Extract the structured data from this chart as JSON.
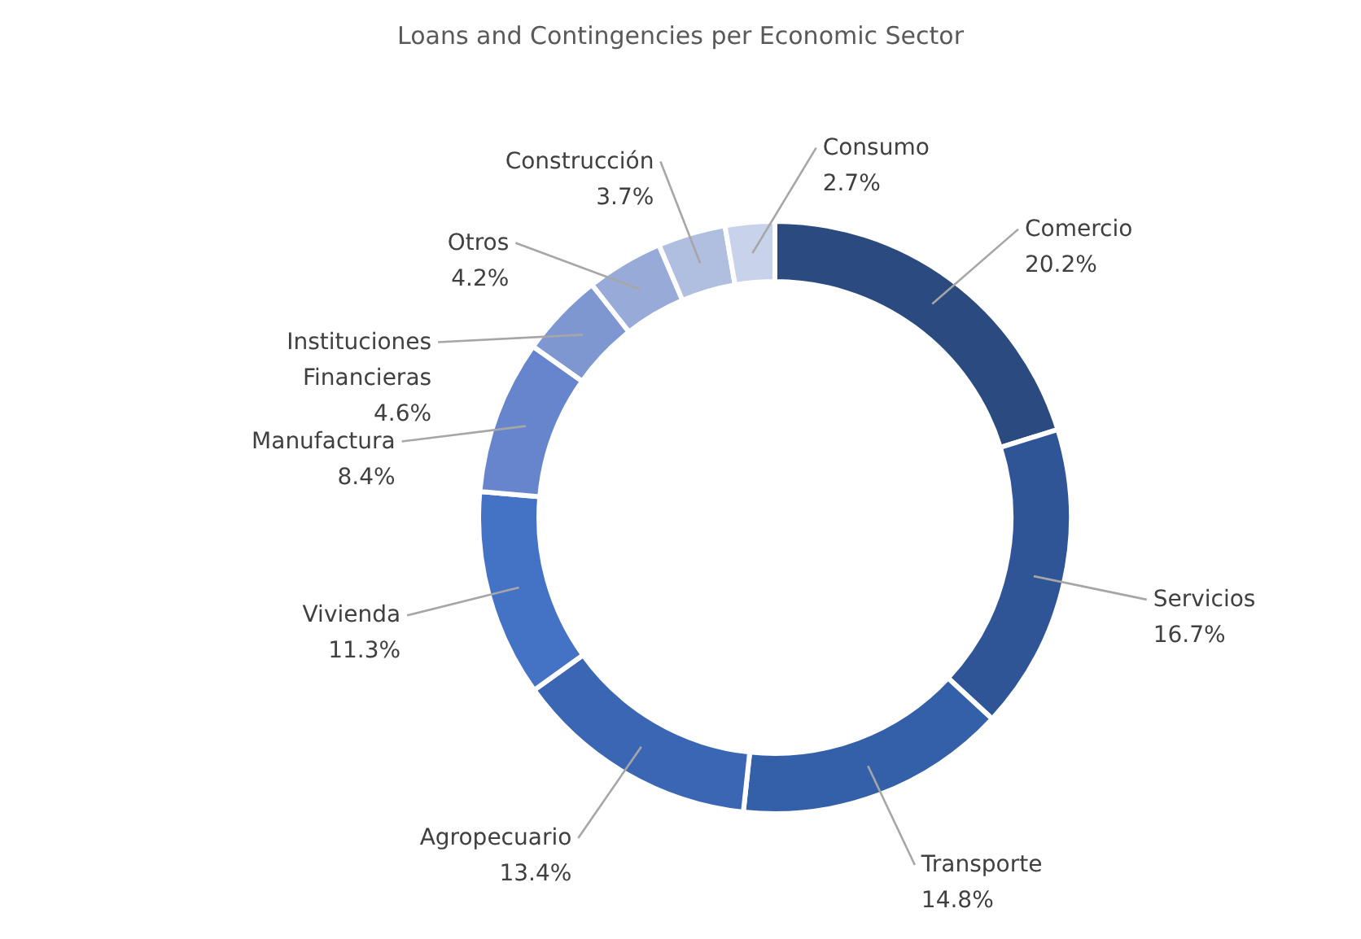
{
  "chart_data": {
    "type": "donut",
    "title": "Loans and Contingencies per Economic Sector",
    "categories": [
      "Comercio",
      "Servicios",
      "Transporte",
      "Agropecuario",
      "Vivienda",
      "Manufactura",
      "Instituciones Financieras",
      "Otros",
      "Construcción",
      "Consumo"
    ],
    "values": [
      20.2,
      16.7,
      14.8,
      13.4,
      11.3,
      8.4,
      4.6,
      4.2,
      3.7,
      2.7
    ],
    "value_labels": [
      "20.2%",
      "16.7%",
      "14.8%",
      "13.4%",
      "11.3%",
      "8.4%",
      "4.6%",
      "4.2%",
      "3.7%",
      "2.7%"
    ],
    "colors": [
      "#2a4a80",
      "#2f5597",
      "#3460aa",
      "#3a66b4",
      "#4472c4",
      "#6685cc",
      "#7f97d1",
      "#98abd8",
      "#b0bfe0",
      "#c8d2ea"
    ]
  }
}
